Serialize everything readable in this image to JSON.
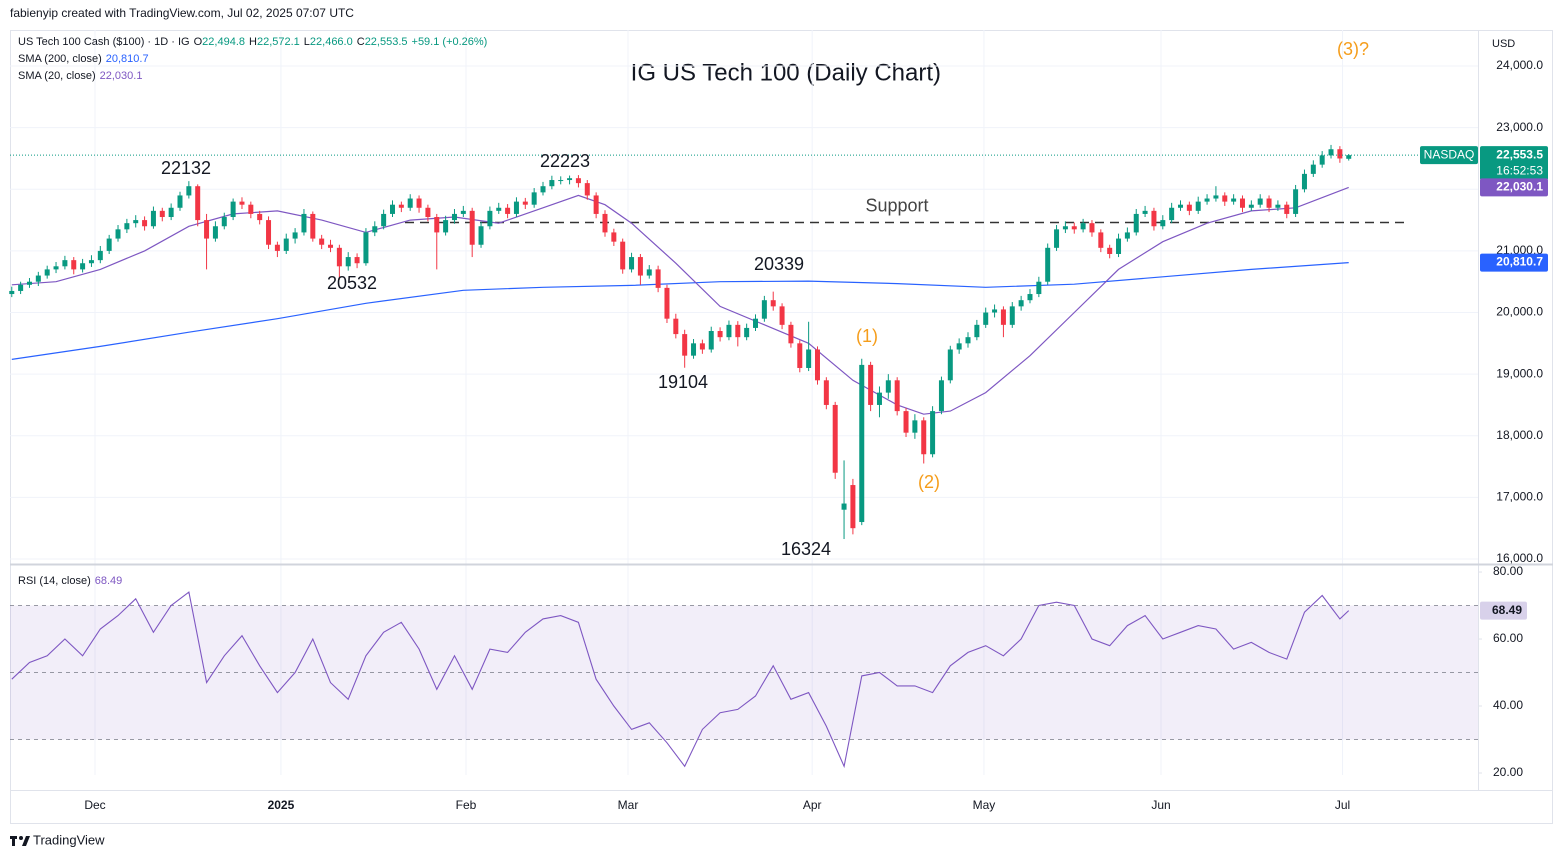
{
  "header": {
    "credit": "fabienyip created with TradingView.com, Jul 02, 2025 07:07 UTC",
    "currency": "USD",
    "footer": "TradingView"
  },
  "chart_data": {
    "type": "candlestick",
    "title": "IG US Tech 100 (Daily Chart)",
    "symbol": "US Tech 100 Cash ($100) · 1D · IG",
    "fields": [
      {
        "key": "O",
        "value": "22,494.8"
      },
      {
        "key": "H",
        "value": "22,572.1"
      },
      {
        "key": "L",
        "value": "22,466.0"
      },
      {
        "key": "C",
        "value": "22,553.5"
      }
    ],
    "change": "+59.1 (+0.26%)",
    "exchange": "NASDAQ",
    "last_label": "22,553.5",
    "countdown": "16:52:53",
    "up_color": "#089981",
    "down_color": "#f23645",
    "xlim": [
      -0.2,
      165.6
    ],
    "xticks": [
      {
        "value": 9.4,
        "label": "Dec"
      },
      {
        "value": 30.4,
        "label": "2025"
      },
      {
        "value": 51.3,
        "label": "Feb"
      },
      {
        "value": 69.6,
        "label": "Mar"
      },
      {
        "value": 90.4,
        "label": "Apr"
      },
      {
        "value": 109.8,
        "label": "May"
      },
      {
        "value": 129.8,
        "label": "Jun"
      },
      {
        "value": 150.3,
        "label": "Jul"
      }
    ],
    "ylim": [
      15935,
      24585
    ],
    "yticks": [
      {
        "value": 16000,
        "label": "16,000.0"
      },
      {
        "value": 17000,
        "label": "17,000.0"
      },
      {
        "value": 18000,
        "label": "18,000.0"
      },
      {
        "value": 19000,
        "label": "19,000.0"
      },
      {
        "value": 20000,
        "label": "20,000.0"
      },
      {
        "value": 21000,
        "label": "21,000.0"
      },
      {
        "value": 22000,
        "label": "22,000.0"
      },
      {
        "value": 23000,
        "label": "23,000.0"
      },
      {
        "value": 24000,
        "label": "24,000.0"
      }
    ],
    "grid": true,
    "ohlc": [
      [
        20300,
        20420,
        20250,
        20350
      ],
      [
        20350,
        20500,
        20300,
        20450
      ],
      [
        20450,
        20560,
        20400,
        20500
      ],
      [
        20500,
        20660,
        20430,
        20600
      ],
      [
        20600,
        20760,
        20550,
        20700
      ],
      [
        20700,
        20820,
        20640,
        20750
      ],
      [
        20750,
        20920,
        20700,
        20850
      ],
      [
        20850,
        20900,
        20620,
        20700
      ],
      [
        20700,
        20870,
        20650,
        20800
      ],
      [
        20800,
        20930,
        20740,
        20850
      ],
      [
        20850,
        21080,
        20800,
        21000
      ],
      [
        21000,
        21260,
        20950,
        21200
      ],
      [
        21200,
        21420,
        21150,
        21350
      ],
      [
        21350,
        21520,
        21290,
        21450
      ],
      [
        21450,
        21580,
        21380,
        21500
      ],
      [
        21500,
        21560,
        21330,
        21400
      ],
      [
        21400,
        21720,
        21360,
        21650
      ],
      [
        21650,
        21700,
        21480,
        21550
      ],
      [
        21550,
        21770,
        21500,
        21700
      ],
      [
        21700,
        21960,
        21650,
        21900
      ],
      [
        21900,
        22132,
        21850,
        22050
      ],
      [
        22050,
        22080,
        21400,
        21500
      ],
      [
        21500,
        21600,
        20700,
        21200
      ],
      [
        21200,
        21480,
        21150,
        21400
      ],
      [
        21400,
        21620,
        21350,
        21550
      ],
      [
        21550,
        21850,
        21500,
        21800
      ],
      [
        21800,
        21870,
        21680,
        21750
      ],
      [
        21750,
        21800,
        21530,
        21600
      ],
      [
        21600,
        21650,
        21430,
        21500
      ],
      [
        21500,
        21560,
        21030,
        21100
      ],
      [
        21100,
        21150,
        20900,
        21000
      ],
      [
        21000,
        21280,
        20950,
        21200
      ],
      [
        21200,
        21370,
        21120,
        21300
      ],
      [
        21300,
        21680,
        21250,
        21600
      ],
      [
        21600,
        21640,
        21150,
        21200
      ],
      [
        21200,
        21260,
        21030,
        21100
      ],
      [
        21100,
        21180,
        20980,
        21050
      ],
      [
        21050,
        21100,
        20532,
        20750
      ],
      [
        20750,
        20980,
        20680,
        20900
      ],
      [
        20900,
        20960,
        20720,
        20800
      ],
      [
        20800,
        21370,
        20760,
        21300
      ],
      [
        21300,
        21480,
        21240,
        21400
      ],
      [
        21400,
        21670,
        21350,
        21600
      ],
      [
        21600,
        21820,
        21550,
        21750
      ],
      [
        21750,
        21800,
        21630,
        21700
      ],
      [
        21700,
        21920,
        21650,
        21850
      ],
      [
        21850,
        21900,
        21620,
        21700
      ],
      [
        21700,
        21750,
        21480,
        21550
      ],
      [
        21550,
        21600,
        20700,
        21300
      ],
      [
        21300,
        21570,
        21250,
        21500
      ],
      [
        21500,
        21680,
        21440,
        21600
      ],
      [
        21600,
        21730,
        21550,
        21650
      ],
      [
        21650,
        21700,
        20900,
        21100
      ],
      [
        21100,
        21470,
        21050,
        21400
      ],
      [
        21400,
        21720,
        21350,
        21650
      ],
      [
        21650,
        21780,
        21600,
        21700
      ],
      [
        21700,
        21760,
        21530,
        21600
      ],
      [
        21600,
        21870,
        21550,
        21800
      ],
      [
        21800,
        21860,
        21680,
        21750
      ],
      [
        21750,
        22020,
        21700,
        21950
      ],
      [
        21950,
        22120,
        21900,
        22050
      ],
      [
        22050,
        22220,
        22000,
        22150
      ],
      [
        22150,
        22210,
        22080,
        22150
      ],
      [
        22150,
        22223,
        22080,
        22180
      ],
      [
        22180,
        22230,
        22030,
        22100
      ],
      [
        22100,
        22150,
        21830,
        21900
      ],
      [
        21900,
        21950,
        21530,
        21600
      ],
      [
        21600,
        21660,
        21230,
        21300
      ],
      [
        21300,
        21360,
        21080,
        21150
      ],
      [
        21150,
        21200,
        20630,
        20700
      ],
      [
        20700,
        20970,
        20650,
        20900
      ],
      [
        20900,
        20950,
        20450,
        20600
      ],
      [
        20600,
        20770,
        20550,
        20700
      ],
      [
        20700,
        20760,
        20330,
        20400
      ],
      [
        20400,
        20450,
        19830,
        19900
      ],
      [
        19900,
        19980,
        19580,
        19650
      ],
      [
        19650,
        19720,
        19104,
        19300
      ],
      [
        19300,
        19570,
        19250,
        19500
      ],
      [
        19500,
        19560,
        19330,
        19400
      ],
      [
        19400,
        19770,
        19350,
        19700
      ],
      [
        19700,
        19760,
        19530,
        19600
      ],
      [
        19600,
        19870,
        19550,
        19800
      ],
      [
        19800,
        19860,
        19450,
        19600
      ],
      [
        19600,
        19820,
        19550,
        19750
      ],
      [
        19750,
        19970,
        19700,
        19900
      ],
      [
        19900,
        20270,
        19850,
        20200
      ],
      [
        20200,
        20339,
        20030,
        20100
      ],
      [
        20100,
        20150,
        19730,
        19800
      ],
      [
        19800,
        19850,
        19430,
        19500
      ],
      [
        19500,
        19550,
        19030,
        19100
      ],
      [
        19100,
        19850,
        19050,
        19400
      ],
      [
        19400,
        19450,
        18830,
        18900
      ],
      [
        18900,
        18950,
        18430,
        18500
      ],
      [
        18500,
        18550,
        17300,
        17400
      ],
      [
        16800,
        17600,
        16324,
        16900
      ],
      [
        17200,
        17300,
        16400,
        16500
      ],
      [
        16600,
        19250,
        16550,
        19150
      ],
      [
        19150,
        19200,
        18400,
        18500
      ],
      [
        18500,
        18800,
        18300,
        18700
      ],
      [
        18700,
        19000,
        18600,
        18900
      ],
      [
        18900,
        18950,
        18330,
        18400
      ],
      [
        18400,
        18450,
        17980,
        18050
      ],
      [
        18050,
        18350,
        17950,
        18250
      ],
      [
        18250,
        18300,
        17550,
        17700
      ],
      [
        17700,
        18480,
        17650,
        18400
      ],
      [
        18400,
        18960,
        18350,
        18900
      ],
      [
        18900,
        19460,
        18850,
        19400
      ],
      [
        19400,
        19580,
        19330,
        19500
      ],
      [
        19500,
        19680,
        19430,
        19600
      ],
      [
        19600,
        19880,
        19550,
        19800
      ],
      [
        19800,
        20080,
        19750,
        20000
      ],
      [
        20000,
        20130,
        19920,
        20050
      ],
      [
        20050,
        20100,
        19600,
        19800
      ],
      [
        19800,
        20170,
        19750,
        20100
      ],
      [
        20100,
        20270,
        20030,
        20200
      ],
      [
        20200,
        20380,
        20150,
        20300
      ],
      [
        20300,
        20580,
        20250,
        20500
      ],
      [
        20500,
        21120,
        20450,
        21050
      ],
      [
        21050,
        21420,
        21000,
        21350
      ],
      [
        21350,
        21480,
        21290,
        21400
      ],
      [
        21400,
        21460,
        21280,
        21350
      ],
      [
        21350,
        21520,
        21300,
        21450
      ],
      [
        21450,
        21500,
        21230,
        21300
      ],
      [
        21300,
        21350,
        20980,
        21050
      ],
      [
        21050,
        21100,
        20880,
        20950
      ],
      [
        20950,
        21280,
        20900,
        21200
      ],
      [
        21200,
        21380,
        21150,
        21300
      ],
      [
        21300,
        21680,
        21250,
        21600
      ],
      [
        21600,
        21730,
        21550,
        21650
      ],
      [
        21650,
        21700,
        21330,
        21400
      ],
      [
        21400,
        21580,
        21350,
        21500
      ],
      [
        21500,
        21780,
        21450,
        21700
      ],
      [
        21700,
        21820,
        21650,
        21750
      ],
      [
        21750,
        21800,
        21580,
        21650
      ],
      [
        21650,
        21880,
        21600,
        21800
      ],
      [
        21800,
        21920,
        21750,
        21850
      ],
      [
        21850,
        22050,
        21800,
        21900
      ],
      [
        21900,
        21950,
        21730,
        21800
      ],
      [
        21800,
        21920,
        21750,
        21850
      ],
      [
        21850,
        21900,
        21630,
        21700
      ],
      [
        21700,
        21820,
        21650,
        21750
      ],
      [
        21750,
        21920,
        21700,
        21850
      ],
      [
        21850,
        21900,
        21630,
        21700
      ],
      [
        21700,
        21820,
        21650,
        21750
      ],
      [
        21750,
        21800,
        21530,
        21600
      ],
      [
        21600,
        22070,
        21550,
        22000
      ],
      [
        22000,
        22320,
        21950,
        22250
      ],
      [
        22250,
        22470,
        22200,
        22400
      ],
      [
        22400,
        22620,
        22350,
        22550
      ],
      [
        22550,
        22720,
        22500,
        22650
      ],
      [
        22650,
        22700,
        22430,
        22500
      ],
      [
        22494.8,
        22572.1,
        22466,
        22553.5
      ]
    ],
    "lines": [
      {
        "name": "SMA (200, close)",
        "color": "#2962ff",
        "value_label": "20,810.7",
        "x": [
          0,
          10,
          20,
          30,
          40,
          51,
          60,
          70,
          80,
          90,
          100,
          110,
          120,
          130,
          140,
          151
        ],
        "values": [
          19240,
          19450,
          19680,
          19900,
          20150,
          20360,
          20410,
          20440,
          20500,
          20510,
          20470,
          20410,
          20460,
          20580,
          20700,
          20810.7
        ]
      },
      {
        "name": "SMA (20, close)",
        "color": "#7e57c2",
        "value_label": "22,030.1",
        "x": [
          0,
          5,
          10,
          15,
          20,
          25,
          30,
          35,
          40,
          45,
          50,
          55,
          60,
          64,
          67,
          70,
          75,
          80,
          85,
          90,
          95,
          100,
          103,
          106,
          110,
          115,
          120,
          125,
          130,
          135,
          140,
          145,
          151
        ],
        "values": [
          20450,
          20500,
          20700,
          21000,
          21400,
          21600,
          21650,
          21500,
          21300,
          21500,
          21550,
          21450,
          21700,
          21900,
          21750,
          21450,
          20800,
          20100,
          19800,
          19500,
          18900,
          18500,
          18350,
          18400,
          18700,
          19300,
          20000,
          20700,
          21150,
          21450,
          21650,
          21700,
          22030.1
        ]
      }
    ],
    "support": {
      "label": "Support",
      "value": 21460
    },
    "annotations": [
      {
        "text": "22132"
      },
      {
        "text": "20532"
      },
      {
        "text": "22223"
      },
      {
        "text": "19104"
      },
      {
        "text": "20339"
      },
      {
        "text": "16324"
      },
      {
        "text": "(1)",
        "color": "#f59d1b"
      },
      {
        "text": "(2)",
        "color": "#f59d1b"
      },
      {
        "text": "(3)?",
        "color": "#f59d1b"
      }
    ],
    "rsi": {
      "name": "RSI (14, close)",
      "color": "#7e57c2",
      "value_label": "68.49",
      "ylim": [
        19.4,
        81.8
      ],
      "yticks": [
        {
          "value": 20,
          "label": "20.00"
        },
        {
          "value": 40,
          "label": "40.00"
        },
        {
          "value": 60,
          "label": "60.00"
        },
        {
          "value": 80,
          "label": "80.00"
        }
      ],
      "levels": [
        70,
        50,
        30
      ],
      "x": [
        0,
        2,
        4,
        6,
        8,
        10,
        12,
        14,
        16,
        18,
        20,
        22,
        24,
        26,
        28,
        30,
        32,
        34,
        36,
        38,
        40,
        42,
        44,
        46,
        48,
        50,
        52,
        54,
        56,
        58,
        60,
        62,
        64,
        66,
        68,
        70,
        72,
        74,
        76,
        78,
        80,
        82,
        84,
        86,
        88,
        90,
        92,
        94,
        96,
        98,
        100,
        102,
        104,
        106,
        108,
        110,
        112,
        114,
        116,
        118,
        120,
        122,
        124,
        126,
        128,
        130,
        132,
        134,
        136,
        138,
        140,
        142,
        144,
        146,
        148,
        150,
        151
      ],
      "values": [
        48,
        53,
        55,
        60,
        55,
        63,
        67,
        72,
        62,
        70,
        74,
        47,
        55,
        61,
        52,
        44,
        50,
        60,
        47,
        42,
        55,
        62,
        65,
        57,
        45,
        55,
        45,
        57,
        56,
        62,
        66,
        67,
        65,
        48,
        40,
        33,
        35,
        29,
        22,
        33,
        38,
        39,
        43,
        52,
        42,
        44,
        34,
        22,
        49,
        50,
        46,
        46,
        44,
        52,
        56,
        58,
        55,
        60,
        70,
        71,
        70,
        60,
        58,
        64,
        67,
        60,
        62,
        64,
        63,
        57,
        59,
        56,
        54,
        68,
        73,
        66,
        68.49
      ]
    }
  }
}
